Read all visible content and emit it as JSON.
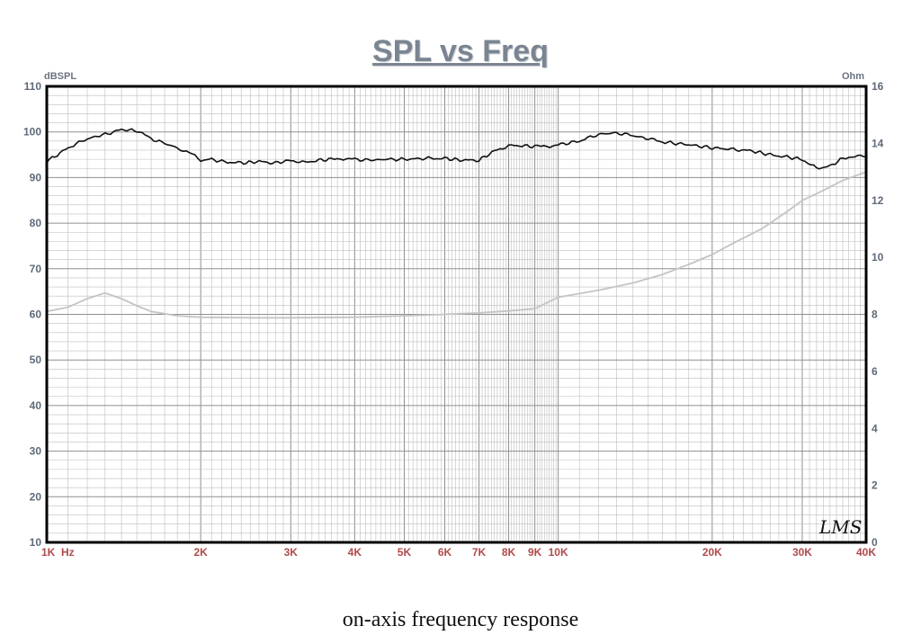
{
  "header": {
    "title": "SPL vs Freq"
  },
  "caption": "on-axis frequency response",
  "watermark": "LMS",
  "colors": {
    "spl_line": "#111111",
    "impedance_line": "#c4c4c4",
    "grid": "#bdbdbd",
    "frame": "#000000"
  },
  "chart_data": {
    "type": "line",
    "title": "SPL vs Freq",
    "y_left_label": "dBSPL",
    "y_right_label": "Ohm",
    "x_scale": "log",
    "xlim": [
      1000,
      40000
    ],
    "ylim_left": [
      10,
      110
    ],
    "ylim_right": [
      0,
      16
    ],
    "grid": true,
    "x_ticks": [
      {
        "value": 1000,
        "label": "1K"
      },
      {
        "value": 2000,
        "label": "2K"
      },
      {
        "value": 3000,
        "label": "3K"
      },
      {
        "value": 4000,
        "label": "4K"
      },
      {
        "value": 5000,
        "label": "5K"
      },
      {
        "value": 6000,
        "label": "6K"
      },
      {
        "value": 7000,
        "label": "7K"
      },
      {
        "value": 8000,
        "label": "8K"
      },
      {
        "value": 9000,
        "label": "9K"
      },
      {
        "value": 10000,
        "label": "10K"
      },
      {
        "value": 20000,
        "label": "20K"
      },
      {
        "value": 30000,
        "label": "30K"
      },
      {
        "value": 40000,
        "label": "40K"
      }
    ],
    "x_unit_label": "Hz",
    "y_ticks_left": [
      10,
      20,
      30,
      40,
      50,
      60,
      70,
      80,
      90,
      100,
      110
    ],
    "y_ticks_right": [
      0,
      2,
      4,
      6,
      8,
      10,
      12,
      14,
      16
    ],
    "series": [
      {
        "axis": "left",
        "x": [
          1000,
          1100,
          1200,
          1300,
          1400,
          1500,
          1600,
          1700,
          1800,
          1900,
          2000,
          2100,
          2200,
          2400,
          2600,
          2800,
          3000,
          3200,
          3400,
          3600,
          3800,
          4000,
          4300,
          4600,
          5000,
          5500,
          6000,
          6500,
          7000,
          7500,
          8000,
          8500,
          9000,
          9500,
          10000,
          11000,
          12000,
          13000,
          14000,
          15000,
          16000,
          18000,
          20000,
          22000,
          24000,
          26000,
          28000,
          30000,
          32000,
          34000,
          36000,
          38000,
          40000
        ],
        "values": [
          93.5,
          96.5,
          98.5,
          99.5,
          100.5,
          100.3,
          98.5,
          97.5,
          96.5,
          95.5,
          93.8,
          94.0,
          93.5,
          93.2,
          93.5,
          93.2,
          93.8,
          93.3,
          93.8,
          94.0,
          94.2,
          94.0,
          93.8,
          94.0,
          94.0,
          94.2,
          94.2,
          93.8,
          93.8,
          95.8,
          97.0,
          97.0,
          96.8,
          96.8,
          97.2,
          98.0,
          99.5,
          99.8,
          99.2,
          98.5,
          97.8,
          97.2,
          96.5,
          96.2,
          95.8,
          95.0,
          94.5,
          94.0,
          92.0,
          92.5,
          94.2,
          94.8,
          94.5
        ]
      },
      {
        "axis": "right",
        "x": [
          1000,
          1100,
          1200,
          1300,
          1400,
          1500,
          1600,
          1800,
          2000,
          2500,
          3000,
          4000,
          5000,
          6000,
          7000,
          8000,
          9000,
          10000,
          12000,
          14000,
          16000,
          18000,
          20000,
          22000,
          25000,
          28000,
          30000,
          33000,
          36000,
          40000
        ],
        "values": [
          8.1,
          8.25,
          8.55,
          8.75,
          8.55,
          8.3,
          8.1,
          7.95,
          7.9,
          7.88,
          7.88,
          7.9,
          7.95,
          8.0,
          8.05,
          8.12,
          8.2,
          8.6,
          8.85,
          9.1,
          9.4,
          9.75,
          10.1,
          10.5,
          11.0,
          11.6,
          12.0,
          12.35,
          12.7,
          13.0
        ]
      }
    ]
  }
}
